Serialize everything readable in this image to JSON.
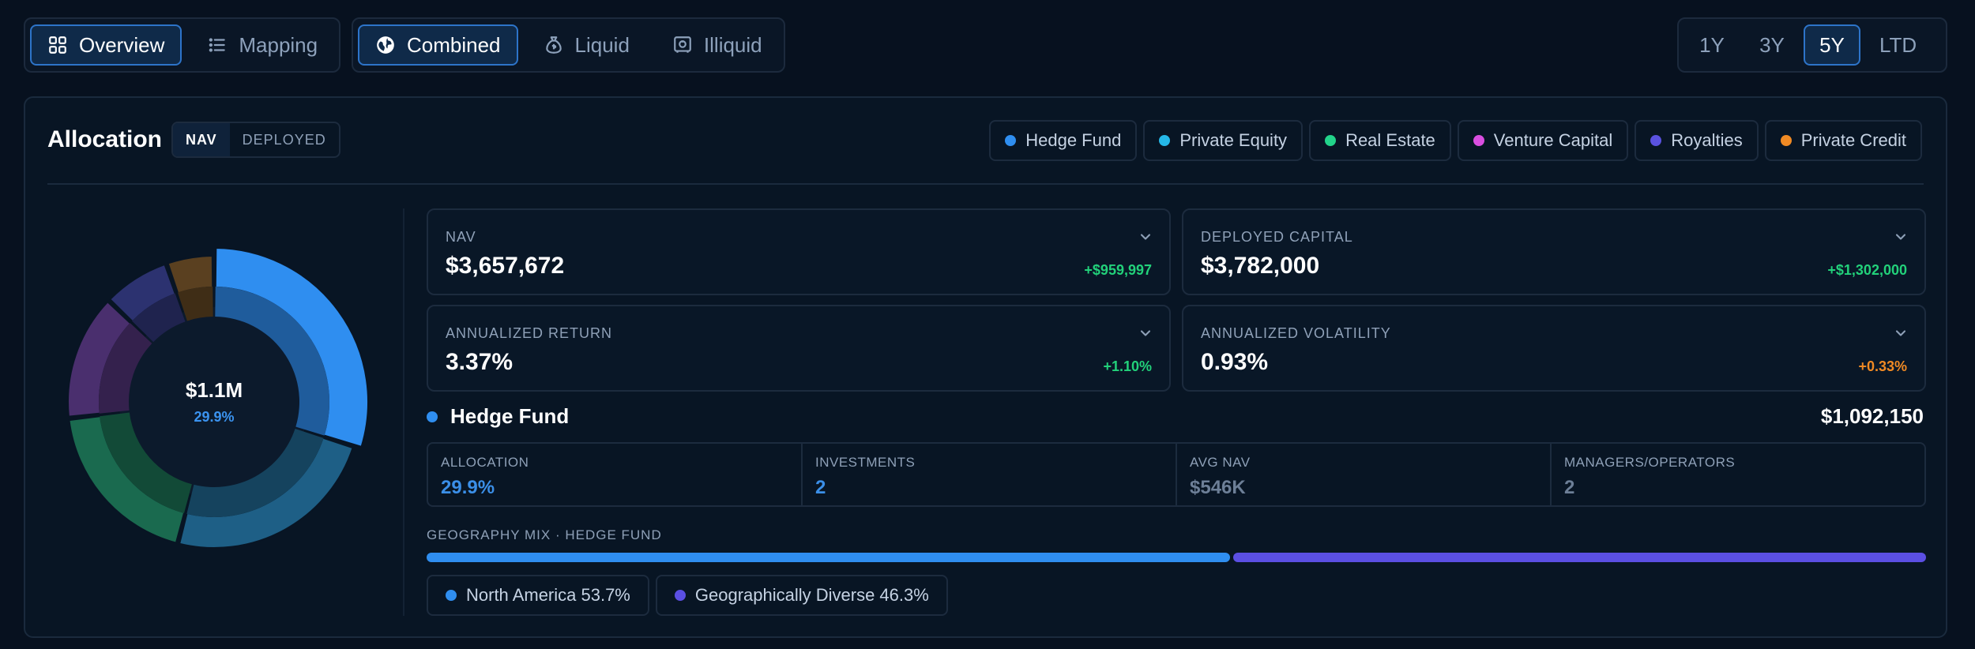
{
  "toolbar": {
    "view_tabs": [
      {
        "label": "Overview",
        "icon": "grid-icon",
        "active": true
      },
      {
        "label": "Mapping",
        "icon": "list-icon",
        "active": false
      }
    ],
    "scope_tabs": [
      {
        "label": "Combined",
        "icon": "globe-icon",
        "active": true
      },
      {
        "label": "Liquid",
        "icon": "money-bag-icon",
        "active": false
      },
      {
        "label": "Illiquid",
        "icon": "safe-icon",
        "active": false
      }
    ],
    "time_tabs": [
      {
        "label": "1Y",
        "active": false
      },
      {
        "label": "3Y",
        "active": false
      },
      {
        "label": "5Y",
        "active": true
      },
      {
        "label": "LTD",
        "active": false
      }
    ]
  },
  "allocation": {
    "title": "Allocation",
    "toggle": [
      {
        "label": "NAV",
        "active": true
      },
      {
        "label": "DEPLOYED",
        "active": false
      }
    ],
    "legend": [
      {
        "label": "Hedge Fund",
        "color": "#2f8ef0"
      },
      {
        "label": "Private Equity",
        "color": "#25b8e8"
      },
      {
        "label": "Real Estate",
        "color": "#22d38a"
      },
      {
        "label": "Venture Capital",
        "color": "#d94ee0"
      },
      {
        "label": "Royalties",
        "color": "#5a52e0"
      },
      {
        "label": "Private Credit",
        "color": "#f08a24"
      }
    ],
    "donut": {
      "center_value": "$1.1M",
      "center_pct": "29.9%",
      "slices": [
        {
          "name": "Hedge Fund",
          "pct": 29.9,
          "color": "#2f8ef0",
          "highlight": true
        },
        {
          "name": "Private Equity",
          "pct": 24.1,
          "color": "#1e5f86"
        },
        {
          "name": "Real Estate",
          "pct": 19.2,
          "color": "#1a6a4f"
        },
        {
          "name": "Venture Capital",
          "pct": 14.0,
          "color": "#4a2f6e"
        },
        {
          "name": "Royalties",
          "pct": 7.5,
          "color": "#2c3270"
        },
        {
          "name": "Private Credit",
          "pct": 5.3,
          "color": "#5a4020"
        }
      ]
    }
  },
  "metrics": [
    {
      "label": "NAV",
      "value": "$3,657,672",
      "delta": "+$959,997",
      "tone": "pos"
    },
    {
      "label": "DEPLOYED CAPITAL",
      "value": "$3,782,000",
      "delta": "+$1,302,000",
      "tone": "pos"
    },
    {
      "label": "ANNUALIZED RETURN",
      "value": "3.37%",
      "delta": "+1.10%",
      "tone": "pos"
    },
    {
      "label": "ANNUALIZED VOLATILITY",
      "value": "0.93%",
      "delta": "+0.33%",
      "tone": "neg"
    }
  ],
  "hedge_fund": {
    "title": "Hedge Fund",
    "total": "$1,092,150",
    "color": "#2f8ef0",
    "stats": [
      {
        "label": "ALLOCATION",
        "value": "29.9%",
        "dim": false
      },
      {
        "label": "INVESTMENTS",
        "value": "2",
        "dim": false
      },
      {
        "label": "AVG NAV",
        "value": "$546K",
        "dim": true
      },
      {
        "label": "MANAGERS/OPERATORS",
        "value": "2",
        "dim": true
      }
    ],
    "geography": {
      "title": "GEOGRAPHY MIX · HEDGE FUND",
      "segments": [
        {
          "label": "North America 53.7%",
          "pct": 53.7,
          "color": "#2f8ef0"
        },
        {
          "label": "Geographically Diverse 46.3%",
          "pct": 46.3,
          "color": "#5b4fe3"
        }
      ]
    }
  }
}
